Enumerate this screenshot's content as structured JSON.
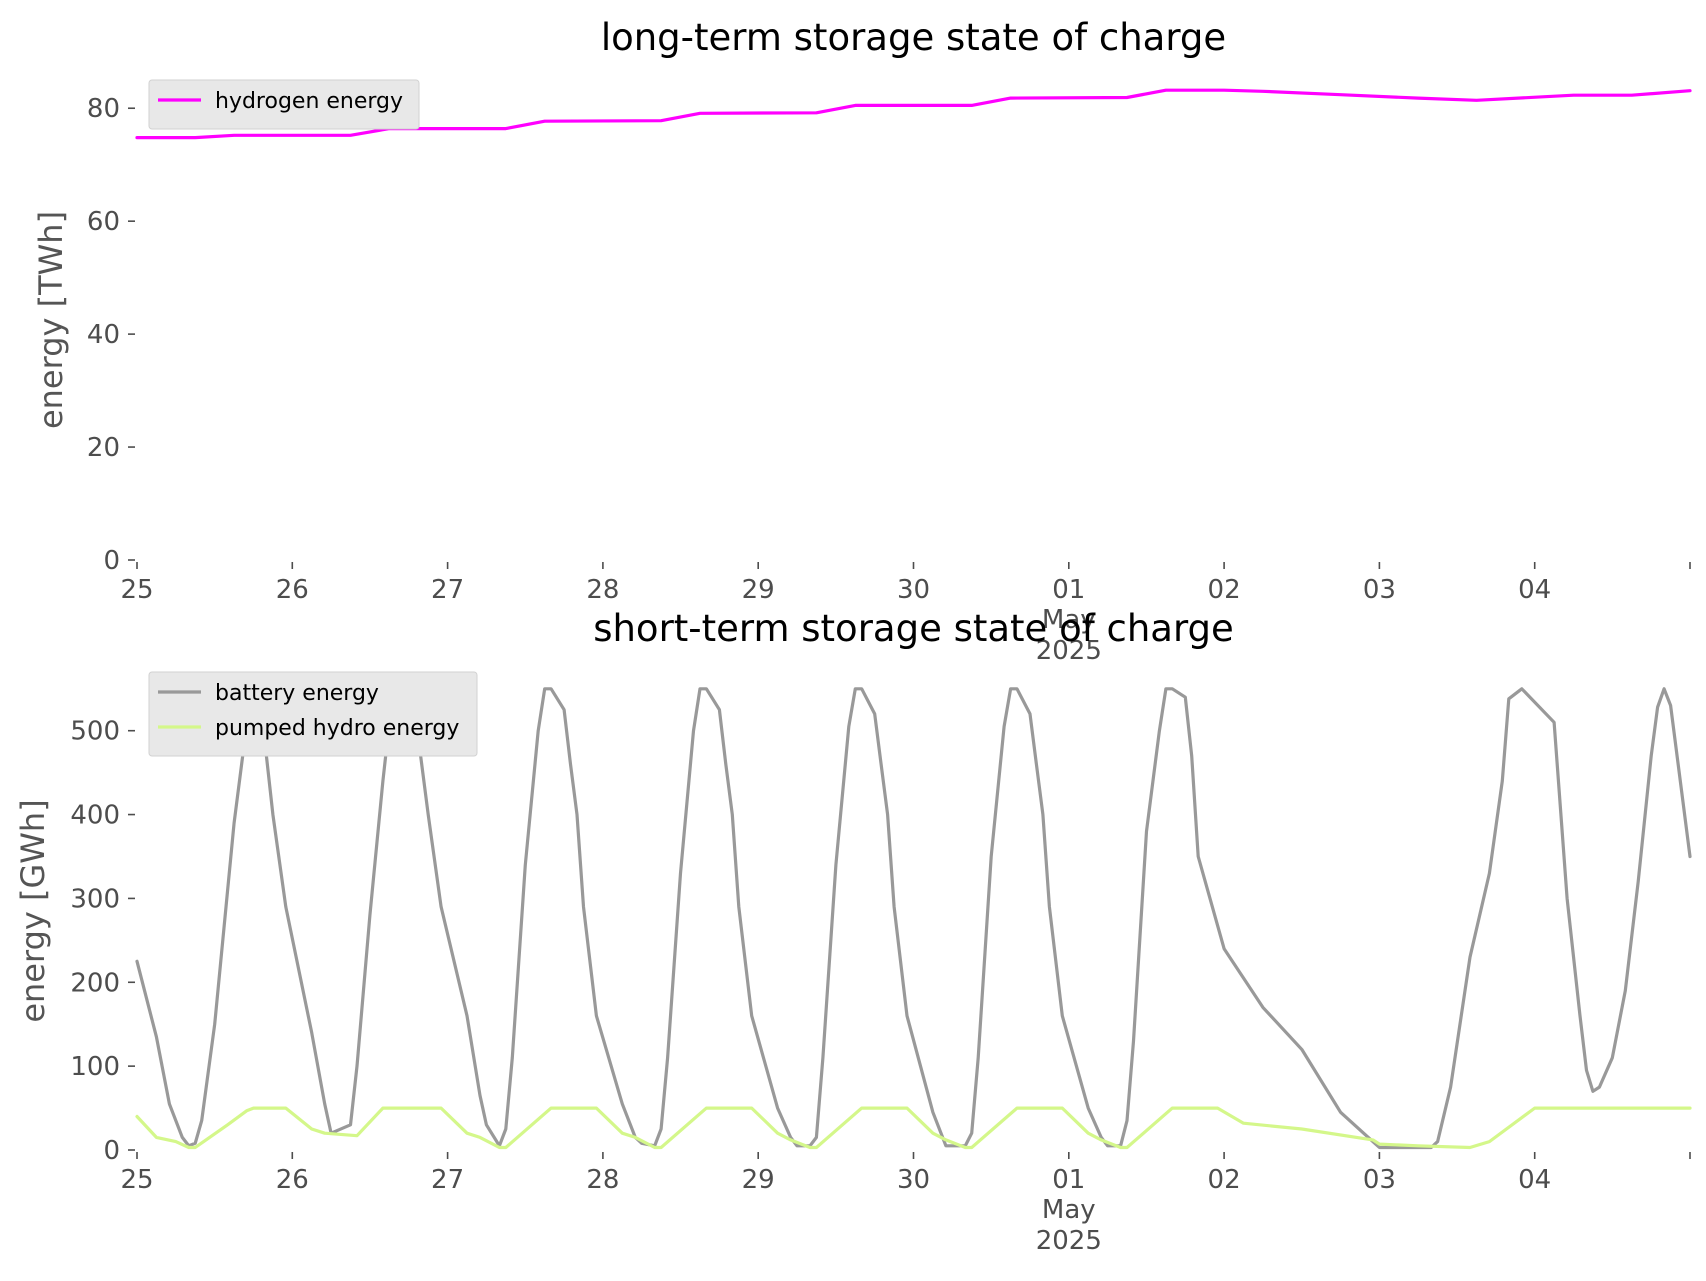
{
  "chart_data": [
    {
      "type": "line",
      "title": "long-term storage state of charge",
      "xlabel": "",
      "ylabel": "energy [TWh]",
      "xlim": [
        "2025-04-25 00:00",
        "2025-05-05 00:00"
      ],
      "ylim": [
        0,
        85
      ],
      "yticks": [
        0,
        20,
        40,
        60,
        80
      ],
      "xtick_labels": [
        {
          "date": "2025-04-25",
          "label": "25"
        },
        {
          "date": "2025-04-26",
          "label": "26"
        },
        {
          "date": "2025-04-27",
          "label": "27"
        },
        {
          "date": "2025-04-28",
          "label": "28"
        },
        {
          "date": "2025-04-29",
          "label": "29"
        },
        {
          "date": "2025-04-30",
          "label": "30"
        },
        {
          "date": "2025-05-01",
          "label": "01",
          "sub": [
            "May",
            "2025"
          ]
        },
        {
          "date": "2025-05-02",
          "label": "02"
        },
        {
          "date": "2025-05-03",
          "label": "03"
        },
        {
          "date": "2025-05-04",
          "label": "04"
        },
        {
          "date": "2025-05-05",
          "label": ""
        }
      ],
      "grid": false,
      "legend_position": "top-left",
      "series": [
        {
          "name": "hydrogen energy",
          "color": "#ff00ff",
          "x": [
            "2025-04-25 00:00",
            "2025-04-25 09:00",
            "2025-04-25 15:00",
            "2025-04-26 09:00",
            "2025-04-26 15:00",
            "2025-04-27 09:00",
            "2025-04-27 15:00",
            "2025-04-28 09:00",
            "2025-04-28 15:00",
            "2025-04-29 09:00",
            "2025-04-29 15:00",
            "2025-04-30 09:00",
            "2025-04-30 15:00",
            "2025-05-01 09:00",
            "2025-05-01 15:00",
            "2025-05-02 00:00",
            "2025-05-02 06:00",
            "2025-05-02 18:00",
            "2025-05-03 06:00",
            "2025-05-03 15:00",
            "2025-05-04 06:00",
            "2025-05-04 15:00",
            "2025-05-05 00:00"
          ],
          "values": [
            74.8,
            74.8,
            75.2,
            75.2,
            76.4,
            76.4,
            77.7,
            77.8,
            79.1,
            79.2,
            80.5,
            80.5,
            81.8,
            81.9,
            83.2,
            83.2,
            83.0,
            82.4,
            81.8,
            81.4,
            82.3,
            82.3,
            83.1
          ]
        }
      ]
    },
    {
      "type": "line",
      "title": "short-term storage state of charge",
      "xlabel": "",
      "ylabel": "energy [GWh]",
      "xlim": [
        "2025-04-25 00:00",
        "2025-05-05 00:00"
      ],
      "ylim": [
        0,
        570
      ],
      "yticks": [
        0,
        100,
        200,
        300,
        400,
        500
      ],
      "xtick_labels": [
        {
          "date": "2025-04-25",
          "label": "25"
        },
        {
          "date": "2025-04-26",
          "label": "26"
        },
        {
          "date": "2025-04-27",
          "label": "27"
        },
        {
          "date": "2025-04-28",
          "label": "28"
        },
        {
          "date": "2025-04-29",
          "label": "29"
        },
        {
          "date": "2025-04-30",
          "label": "30"
        },
        {
          "date": "2025-05-01",
          "label": "01",
          "sub": [
            "May",
            "2025"
          ]
        },
        {
          "date": "2025-05-02",
          "label": "02"
        },
        {
          "date": "2025-05-03",
          "label": "03"
        },
        {
          "date": "2025-05-04",
          "label": "04"
        },
        {
          "date": "2025-05-05",
          "label": ""
        }
      ],
      "grid": false,
      "legend_position": "top-left",
      "series": [
        {
          "name": "battery energy",
          "color": "#999999",
          "x": [
            "2025-04-25 00:00",
            "2025-04-25 03:00",
            "2025-04-25 05:00",
            "2025-04-25 07:00",
            "2025-04-25 08:00",
            "2025-04-25 09:00",
            "2025-04-25 10:00",
            "2025-04-25 12:00",
            "2025-04-25 15:00",
            "2025-04-25 17:00",
            "2025-04-25 18:00",
            "2025-04-25 19:00",
            "2025-04-25 20:00",
            "2025-04-25 21:00",
            "2025-04-25 23:00",
            "2025-04-26 03:00",
            "2025-04-26 05:00",
            "2025-04-26 06:00",
            "2025-04-26 09:00",
            "2025-04-26 10:00",
            "2025-04-26 12:00",
            "2025-04-26 14:00",
            "2025-04-26 15:00",
            "2025-04-26 17:00",
            "2025-04-26 18:00",
            "2025-04-26 19:00",
            "2025-04-26 20:00",
            "2025-04-26 21:00",
            "2025-04-26 23:00",
            "2025-04-27 03:00",
            "2025-04-27 05:00",
            "2025-04-27 06:00",
            "2025-04-27 08:00",
            "2025-04-27 09:00",
            "2025-04-27 10:00",
            "2025-04-27 12:00",
            "2025-04-27 14:00",
            "2025-04-27 15:00",
            "2025-04-27 16:00",
            "2025-04-27 18:00",
            "2025-04-27 19:00",
            "2025-04-27 20:00",
            "2025-04-27 21:00",
            "2025-04-27 23:00",
            "2025-04-28 03:00",
            "2025-04-28 05:00",
            "2025-04-28 06:00",
            "2025-04-28 08:00",
            "2025-04-28 09:00",
            "2025-04-28 10:00",
            "2025-04-28 12:00",
            "2025-04-28 14:00",
            "2025-04-28 15:00",
            "2025-04-28 16:00",
            "2025-04-28 18:00",
            "2025-04-28 19:00",
            "2025-04-28 20:00",
            "2025-04-28 21:00",
            "2025-04-28 23:00",
            "2025-04-29 03:00",
            "2025-04-29 05:00",
            "2025-04-29 06:00",
            "2025-04-29 08:00",
            "2025-04-29 09:00",
            "2025-04-29 10:00",
            "2025-04-29 12:00",
            "2025-04-29 14:00",
            "2025-04-29 15:00",
            "2025-04-29 16:00",
            "2025-04-29 18:00",
            "2025-04-29 19:00",
            "2025-04-29 20:00",
            "2025-04-29 21:00",
            "2025-04-29 23:00",
            "2025-04-30 03:00",
            "2025-04-30 05:00",
            "2025-04-30 06:00",
            "2025-04-30 08:00",
            "2025-04-30 09:00",
            "2025-04-30 10:00",
            "2025-04-30 12:00",
            "2025-04-30 14:00",
            "2025-04-30 15:00",
            "2025-04-30 16:00",
            "2025-04-30 18:00",
            "2025-04-30 19:00",
            "2025-04-30 20:00",
            "2025-04-30 21:00",
            "2025-04-30 23:00",
            "2025-05-01 03:00",
            "2025-05-01 05:00",
            "2025-05-01 06:00",
            "2025-05-01 08:00",
            "2025-05-01 09:00",
            "2025-05-01 10:00",
            "2025-05-01 12:00",
            "2025-05-01 14:00",
            "2025-05-01 15:00",
            "2025-05-01 16:00",
            "2025-05-01 18:00",
            "2025-05-01 19:00",
            "2025-05-01 20:00",
            "2025-05-02 00:00",
            "2025-05-02 06:00",
            "2025-05-02 12:00",
            "2025-05-02 18:00",
            "2025-05-03 00:00",
            "2025-05-03 03:00",
            "2025-05-03 06:00",
            "2025-05-03 08:00",
            "2025-05-03 09:00",
            "2025-05-03 11:00",
            "2025-05-03 14:00",
            "2025-05-03 17:00",
            "2025-05-03 19:00",
            "2025-05-03 20:00",
            "2025-05-03 22:00",
            "2025-05-04 03:00",
            "2025-05-04 05:00",
            "2025-05-04 07:00",
            "2025-05-04 08:00",
            "2025-05-04 09:00",
            "2025-05-04 10:00",
            "2025-05-04 12:00",
            "2025-05-04 14:00",
            "2025-05-04 16:00",
            "2025-05-04 18:00",
            "2025-05-04 19:00",
            "2025-05-04 20:00",
            "2025-05-04 21:00",
            "2025-05-05 00:00"
          ],
          "values": [
            225,
            135,
            55,
            15,
            5,
            8,
            35,
            150,
            390,
            510,
            550,
            520,
            470,
            400,
            290,
            140,
            55,
            20,
            30,
            100,
            280,
            440,
            510,
            530,
            550,
            520,
            460,
            400,
            290,
            160,
            65,
            30,
            5,
            25,
            110,
            340,
            500,
            550,
            550,
            525,
            460,
            400,
            290,
            160,
            55,
            15,
            8,
            5,
            25,
            110,
            330,
            500,
            550,
            550,
            525,
            460,
            400,
            290,
            160,
            50,
            15,
            5,
            5,
            15,
            110,
            340,
            505,
            550,
            550,
            520,
            460,
            400,
            290,
            160,
            45,
            5,
            5,
            5,
            20,
            110,
            350,
            505,
            550,
            550,
            520,
            460,
            400,
            290,
            160,
            50,
            15,
            5,
            5,
            35,
            130,
            380,
            500,
            550,
            550,
            540,
            470,
            350,
            240,
            170,
            120,
            45,
            3,
            3,
            3,
            3,
            10,
            75,
            230,
            330,
            440,
            538,
            550,
            510,
            300,
            160,
            95,
            70,
            75,
            110,
            190,
            320,
            470,
            528,
            550,
            530,
            350
          ]
        },
        {
          "name": "pumped hydro energy",
          "color": "#d4f78a",
          "x": [
            "2025-04-25 00:00",
            "2025-04-25 03:00",
            "2025-04-25 06:00",
            "2025-04-25 08:00",
            "2025-04-25 09:00",
            "2025-04-25 14:00",
            "2025-04-25 17:00",
            "2025-04-25 18:00",
            "2025-04-25 23:00",
            "2025-04-26 03:00",
            "2025-04-26 05:00",
            "2025-04-26 10:00",
            "2025-04-26 14:00",
            "2025-04-26 23:00",
            "2025-04-27 03:00",
            "2025-04-27 05:00",
            "2025-04-27 08:00",
            "2025-04-27 09:00",
            "2025-04-27 16:00",
            "2025-04-27 23:00",
            "2025-04-28 03:00",
            "2025-04-28 05:00",
            "2025-04-28 08:00",
            "2025-04-28 09:00",
            "2025-04-28 16:00",
            "2025-04-28 23:00",
            "2025-04-29 03:00",
            "2025-04-29 05:00",
            "2025-04-29 08:00",
            "2025-04-29 09:00",
            "2025-04-29 16:00",
            "2025-04-29 23:00",
            "2025-04-30 03:00",
            "2025-04-30 05:00",
            "2025-04-30 08:00",
            "2025-04-30 09:00",
            "2025-04-30 16:00",
            "2025-04-30 23:00",
            "2025-05-01 03:00",
            "2025-05-01 05:00",
            "2025-05-01 08:00",
            "2025-05-01 09:00",
            "2025-05-01 16:00",
            "2025-05-01 23:00",
            "2025-05-02 03:00",
            "2025-05-02 12:00",
            "2025-05-02 23:00",
            "2025-05-03 00:00",
            "2025-05-03 06:00",
            "2025-05-03 14:00",
            "2025-05-03 17:00",
            "2025-05-04 00:00",
            "2025-05-05 00:00"
          ],
          "values": [
            40,
            15,
            10,
            3,
            3,
            30,
            47,
            50,
            50,
            25,
            20,
            17,
            50,
            50,
            20,
            15,
            3,
            3,
            50,
            50,
            20,
            15,
            3,
            3,
            50,
            50,
            20,
            12,
            3,
            3,
            50,
            50,
            20,
            12,
            3,
            3,
            50,
            50,
            20,
            12,
            3,
            3,
            50,
            50,
            32,
            25,
            12,
            7,
            5,
            3,
            10,
            50,
            50
          ]
        }
      ]
    }
  ]
}
